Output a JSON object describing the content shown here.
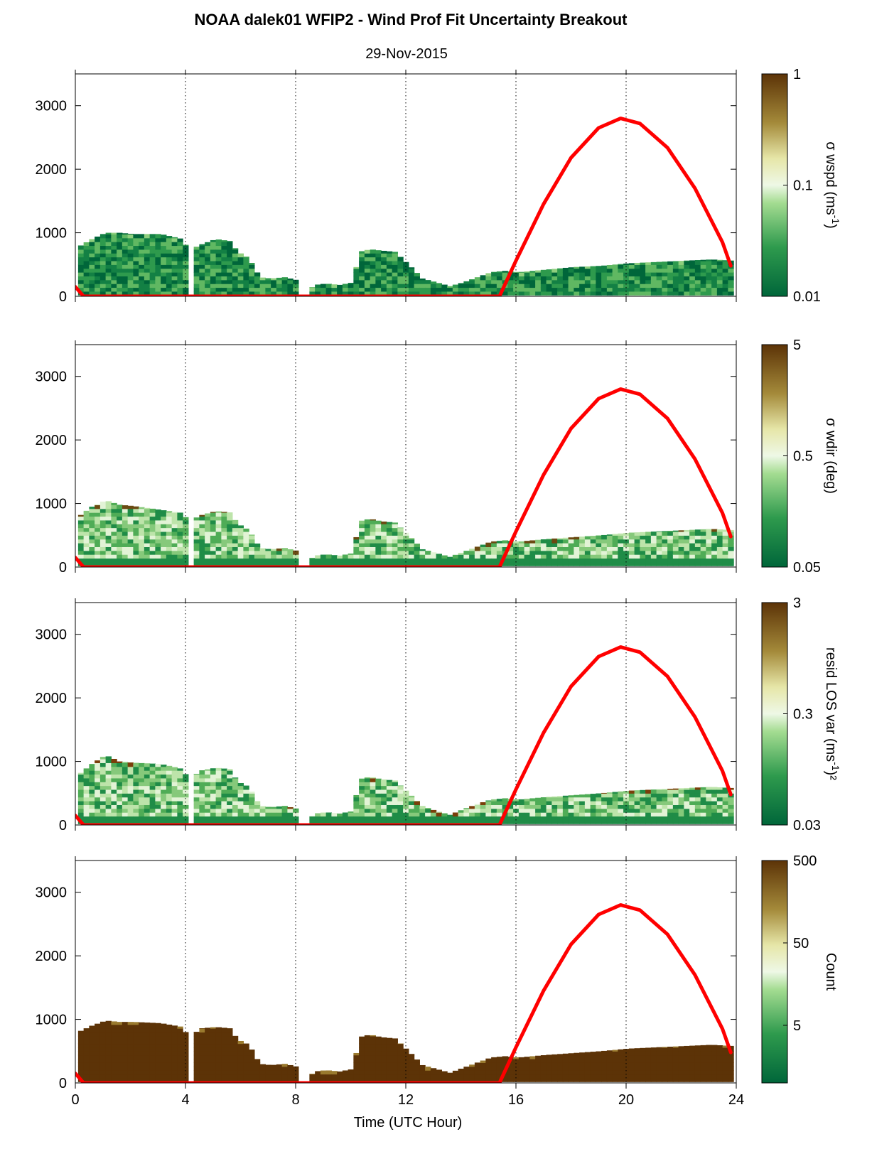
{
  "figure": {
    "title": "NOAA dalek01 WFIP2 - Wind Prof Fit Uncertainty Breakout",
    "subtitle": "29-Nov-2015",
    "xlabel": "Time (UTC Hour)",
    "colors": {
      "curve": "#ff0000",
      "green_dark": "#00663a",
      "green_mid": "#41a84e",
      "green_light": "#d4f0c4",
      "brown_light": "#d2c383",
      "brown_mid": "#8a6a20",
      "brown_dark": "#5c3307"
    }
  },
  "chart_data": [
    {
      "type": "heatmap",
      "panel": "wspd",
      "ylabel": "",
      "xlim": [
        0,
        24
      ],
      "ylim": [
        0,
        3500
      ],
      "x_ticks": [
        0,
        4,
        8,
        12,
        16,
        20,
        24
      ],
      "x_tick_labels": [
        "0",
        "4",
        "8",
        "12",
        "16",
        "20",
        "24"
      ],
      "y_ticks": [
        0,
        1000,
        2000,
        3000
      ],
      "y_tick_labels": [
        "0",
        "1000",
        "2000",
        "3000"
      ],
      "grid": "vertical-dotted",
      "colorbar": {
        "label": "σ wspd (ms",
        "label_sup": "-1",
        "label_end": ")",
        "scale": "log",
        "range": [
          0.01,
          1
        ],
        "ticks": [
          0.01,
          0.1,
          1
        ],
        "tick_labels": [
          "0.01",
          "0.1",
          "1"
        ]
      },
      "coverage_top": [
        [
          0.1,
          800
        ],
        [
          0.5,
          900
        ],
        [
          1.0,
          1000
        ],
        [
          1.5,
          1000
        ],
        [
          2.0,
          980
        ],
        [
          3.0,
          980
        ],
        [
          3.8,
          900
        ],
        [
          4.0,
          720
        ],
        [
          4.5,
          820
        ],
        [
          5.0,
          900
        ],
        [
          5.5,
          870
        ],
        [
          5.8,
          700
        ],
        [
          6.2,
          600
        ],
        [
          6.6,
          300
        ],
        [
          7.0,
          280
        ],
        [
          7.5,
          300
        ],
        [
          7.9,
          260
        ],
        [
          8.1,
          0
        ],
        [
          8.6,
          180
        ],
        [
          9.0,
          200
        ],
        [
          9.5,
          180
        ],
        [
          10.0,
          220
        ],
        [
          10.2,
          700
        ],
        [
          10.6,
          740
        ],
        [
          11.0,
          720
        ],
        [
          11.5,
          700
        ],
        [
          12.0,
          500
        ],
        [
          12.5,
          280
        ],
        [
          13.0,
          220
        ],
        [
          13.5,
          160
        ],
        [
          14.0,
          220
        ],
        [
          14.5,
          300
        ],
        [
          15.0,
          380
        ],
        [
          15.5,
          400
        ],
        [
          16.0,
          380
        ],
        [
          17.0,
          420
        ],
        [
          18.0,
          460
        ],
        [
          19.0,
          480
        ],
        [
          20.0,
          520
        ],
        [
          21.0,
          540
        ],
        [
          22.0,
          560
        ],
        [
          23.0,
          580
        ],
        [
          23.8,
          560
        ]
      ],
      "curve": {
        "name": "",
        "x": [
          0.0,
          0.3,
          15.4,
          16.0,
          17.0,
          18.0,
          19.0,
          19.8,
          20.5,
          21.5,
          22.5,
          23.5,
          23.8
        ],
        "y": [
          150,
          0,
          0,
          560,
          1450,
          2180,
          2650,
          2800,
          2720,
          2340,
          1700,
          850,
          480
        ]
      },
      "fill_palette": [
        "#00663a",
        "#138044",
        "#2e9a4d",
        "#60b862"
      ],
      "top_accent": "#8fcf7e"
    },
    {
      "type": "heatmap",
      "panel": "wdir",
      "ylabel": "",
      "xlim": [
        0,
        24
      ],
      "ylim": [
        0,
        3500
      ],
      "x_ticks": [
        0,
        4,
        8,
        12,
        16,
        20,
        24
      ],
      "x_tick_labels": [
        "0",
        "4",
        "8",
        "12",
        "16",
        "20",
        "24"
      ],
      "y_ticks": [
        0,
        1000,
        2000,
        3000
      ],
      "y_tick_labels": [
        "0",
        "1000",
        "2000",
        "3000"
      ],
      "grid": "vertical-dotted",
      "colorbar": {
        "label": "σ wdir (deg)",
        "label_sup": "",
        "label_end": "",
        "scale": "log",
        "range": [
          0.05,
          5
        ],
        "ticks": [
          0.05,
          0.5,
          5
        ],
        "tick_labels": [
          "0.05",
          "0.5",
          "5"
        ]
      },
      "coverage_top": [
        [
          0.1,
          820
        ],
        [
          0.5,
          950
        ],
        [
          1.0,
          1050
        ],
        [
          1.5,
          980
        ],
        [
          2.0,
          960
        ],
        [
          3.0,
          900
        ],
        [
          3.8,
          850
        ],
        [
          4.0,
          720
        ],
        [
          4.5,
          820
        ],
        [
          5.0,
          880
        ],
        [
          5.5,
          860
        ],
        [
          5.8,
          680
        ],
        [
          6.2,
          580
        ],
        [
          6.6,
          300
        ],
        [
          7.0,
          280
        ],
        [
          7.5,
          300
        ],
        [
          7.9,
          260
        ],
        [
          8.1,
          0
        ],
        [
          8.6,
          180
        ],
        [
          9.0,
          200
        ],
        [
          9.5,
          180
        ],
        [
          10.0,
          220
        ],
        [
          10.2,
          720
        ],
        [
          10.6,
          760
        ],
        [
          11.0,
          720
        ],
        [
          11.5,
          700
        ],
        [
          12.0,
          500
        ],
        [
          12.5,
          280
        ],
        [
          13.0,
          220
        ],
        [
          13.5,
          160
        ],
        [
          14.0,
          240
        ],
        [
          14.5,
          320
        ],
        [
          15.0,
          400
        ],
        [
          15.5,
          420
        ],
        [
          16.0,
          400
        ],
        [
          17.0,
          440
        ],
        [
          18.0,
          470
        ],
        [
          19.0,
          500
        ],
        [
          20.0,
          540
        ],
        [
          21.0,
          560
        ],
        [
          22.0,
          580
        ],
        [
          23.0,
          600
        ],
        [
          23.8,
          580
        ]
      ],
      "curve": {
        "name": "",
        "x": [
          0.0,
          0.3,
          15.4,
          16.0,
          17.0,
          18.0,
          19.0,
          19.8,
          20.5,
          21.5,
          22.5,
          23.5,
          23.8
        ],
        "y": [
          150,
          0,
          0,
          560,
          1450,
          2180,
          2650,
          2800,
          2720,
          2340,
          1700,
          850,
          480
        ]
      },
      "fill_palette": [
        "#1f8c47",
        "#4fac56",
        "#86c97b",
        "#bde4aa",
        "#e2f3d6"
      ],
      "top_accent": "#6b4a12"
    },
    {
      "type": "heatmap",
      "panel": "resid",
      "ylabel": "",
      "xlim": [
        0,
        24
      ],
      "ylim": [
        0,
        3500
      ],
      "x_ticks": [
        0,
        4,
        8,
        12,
        16,
        20,
        24
      ],
      "x_tick_labels": [
        "0",
        "4",
        "8",
        "12",
        "16",
        "20",
        "24"
      ],
      "y_ticks": [
        0,
        1000,
        2000,
        3000
      ],
      "y_tick_labels": [
        "0",
        "1000",
        "2000",
        "3000"
      ],
      "grid": "vertical-dotted",
      "colorbar": {
        "label": "resid LOS var (ms",
        "label_sup": "-1",
        "label_end": ")²",
        "scale": "log",
        "range": [
          0.03,
          3
        ],
        "ticks": [
          0.03,
          0.3,
          3
        ],
        "tick_labels": [
          "0.03",
          "0.3",
          "3"
        ]
      },
      "coverage_top": [
        [
          0.1,
          820
        ],
        [
          0.5,
          960
        ],
        [
          1.0,
          1100
        ],
        [
          1.5,
          1000
        ],
        [
          2.0,
          980
        ],
        [
          3.0,
          960
        ],
        [
          3.8,
          880
        ],
        [
          4.0,
          720
        ],
        [
          4.5,
          860
        ],
        [
          5.0,
          900
        ],
        [
          5.5,
          880
        ],
        [
          5.8,
          680
        ],
        [
          6.2,
          600
        ],
        [
          6.6,
          300
        ],
        [
          7.0,
          280
        ],
        [
          7.5,
          300
        ],
        [
          7.9,
          260
        ],
        [
          8.1,
          0
        ],
        [
          8.6,
          180
        ],
        [
          9.0,
          200
        ],
        [
          9.5,
          180
        ],
        [
          10.0,
          220
        ],
        [
          10.2,
          720
        ],
        [
          10.6,
          760
        ],
        [
          11.0,
          720
        ],
        [
          11.5,
          700
        ],
        [
          12.0,
          500
        ],
        [
          12.5,
          300
        ],
        [
          13.0,
          220
        ],
        [
          13.5,
          160
        ],
        [
          14.0,
          250
        ],
        [
          14.5,
          330
        ],
        [
          15.0,
          400
        ],
        [
          15.5,
          420
        ],
        [
          16.0,
          400
        ],
        [
          17.0,
          440
        ],
        [
          18.0,
          470
        ],
        [
          19.0,
          500
        ],
        [
          20.0,
          540
        ],
        [
          21.0,
          560
        ],
        [
          22.0,
          580
        ],
        [
          23.0,
          600
        ],
        [
          23.8,
          580
        ]
      ],
      "curve": {
        "name": "",
        "x": [
          0.0,
          0.3,
          15.4,
          16.0,
          17.0,
          18.0,
          19.0,
          19.8,
          20.5,
          21.5,
          22.5,
          23.5,
          23.8
        ],
        "y": [
          150,
          0,
          0,
          560,
          1450,
          2180,
          2650,
          2800,
          2720,
          2340,
          1700,
          850,
          480
        ]
      },
      "fill_palette": [
        "#1f8c47",
        "#4fac56",
        "#86c97b",
        "#bde4aa",
        "#e2f3d6"
      ],
      "top_accent": "#7a3e0a"
    },
    {
      "type": "heatmap",
      "panel": "count",
      "ylabel": "",
      "xlim": [
        0,
        24
      ],
      "ylim": [
        0,
        3500
      ],
      "x_ticks": [
        0,
        4,
        8,
        12,
        16,
        20,
        24
      ],
      "x_tick_labels": [
        "0",
        "4",
        "8",
        "12",
        "16",
        "20",
        "24"
      ],
      "y_ticks": [
        0,
        1000,
        2000,
        3000
      ],
      "y_tick_labels": [
        "0",
        "1000",
        "2000",
        "3000"
      ],
      "grid": "vertical-dotted",
      "colorbar": {
        "label": "Count",
        "label_sup": "",
        "label_end": "",
        "scale": "log",
        "range": [
          1,
          500
        ],
        "ticks": [
          5,
          50,
          500
        ],
        "tick_labels": [
          "5",
          "50",
          "500"
        ]
      },
      "coverage_top": [
        [
          0.1,
          820
        ],
        [
          0.5,
          900
        ],
        [
          1.0,
          980
        ],
        [
          1.5,
          960
        ],
        [
          2.0,
          960
        ],
        [
          3.0,
          940
        ],
        [
          3.8,
          880
        ],
        [
          4.0,
          720
        ],
        [
          4.5,
          860
        ],
        [
          5.0,
          880
        ],
        [
          5.5,
          860
        ],
        [
          5.8,
          680
        ],
        [
          6.2,
          600
        ],
        [
          6.6,
          300
        ],
        [
          7.0,
          280
        ],
        [
          7.5,
          300
        ],
        [
          7.9,
          260
        ],
        [
          8.1,
          0
        ],
        [
          8.6,
          180
        ],
        [
          9.0,
          200
        ],
        [
          9.5,
          180
        ],
        [
          10.0,
          220
        ],
        [
          10.2,
          720
        ],
        [
          10.6,
          760
        ],
        [
          11.0,
          720
        ],
        [
          11.5,
          700
        ],
        [
          12.0,
          500
        ],
        [
          12.5,
          280
        ],
        [
          13.0,
          220
        ],
        [
          13.5,
          160
        ],
        [
          14.0,
          240
        ],
        [
          14.5,
          320
        ],
        [
          15.0,
          400
        ],
        [
          15.5,
          420
        ],
        [
          16.0,
          400
        ],
        [
          17.0,
          440
        ],
        [
          18.0,
          470
        ],
        [
          19.0,
          500
        ],
        [
          20.0,
          540
        ],
        [
          21.0,
          560
        ],
        [
          22.0,
          580
        ],
        [
          23.0,
          600
        ],
        [
          23.8,
          580
        ]
      ],
      "curve": {
        "name": "",
        "x": [
          0.0,
          0.3,
          15.4,
          16.0,
          17.0,
          18.0,
          19.0,
          19.8,
          20.5,
          21.5,
          22.5,
          23.5,
          23.8
        ],
        "y": [
          150,
          0,
          0,
          560,
          1450,
          2180,
          2650,
          2800,
          2720,
          2340,
          1700,
          850,
          480
        ]
      },
      "fill_palette": [
        "#5c3307"
      ],
      "top_accent": "#9a7a2e"
    }
  ]
}
